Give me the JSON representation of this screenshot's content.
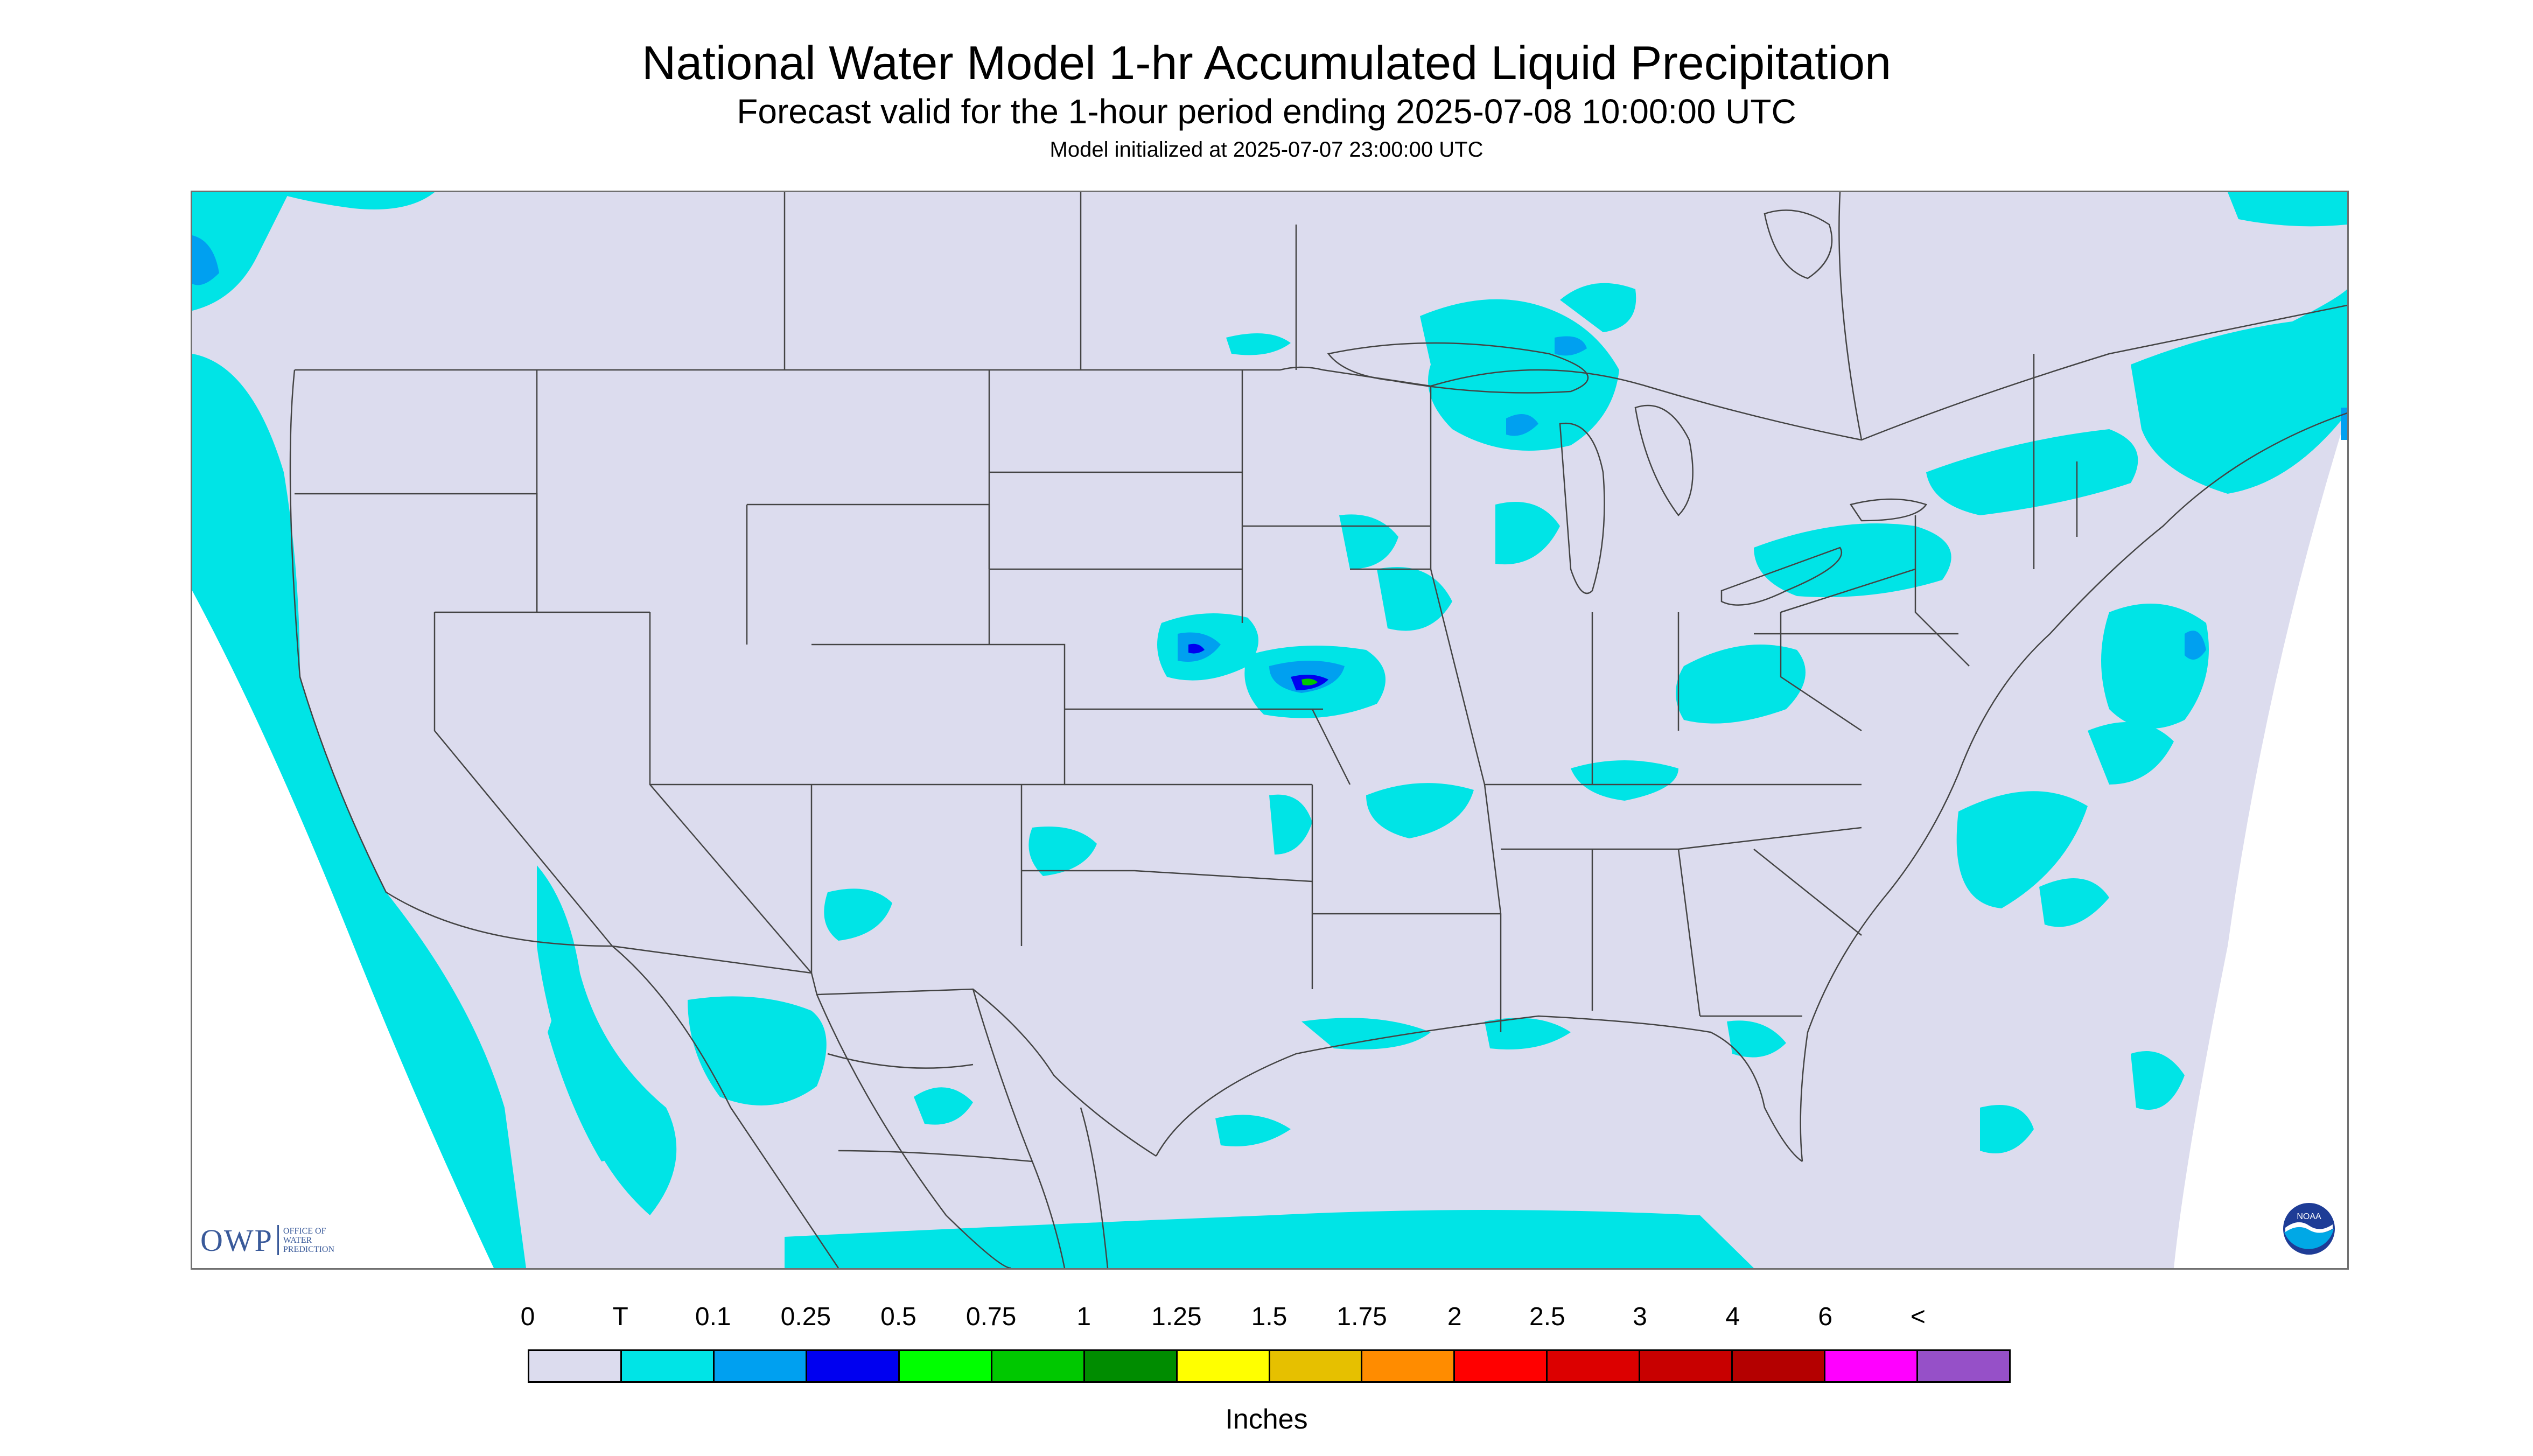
{
  "title": "National Water Model 1-hr Accumulated Liquid Precipitation",
  "subtitle": "Forecast valid for the 1-hour period ending 2025-07-08 10:00:00 UTC",
  "init_line": "Model initialized at 2025-07-07 23:00:00 UTC",
  "logo_owp": {
    "mark": "OWP",
    "words": [
      "Office of",
      "Water",
      "Prediction"
    ]
  },
  "logo_noaa": "NOAA",
  "legend": {
    "units_label": "Inches",
    "tick_labels": [
      "0",
      "T",
      "0.1",
      "0.25",
      "0.5",
      "0.75",
      "1",
      "1.25",
      "1.5",
      "1.75",
      "2",
      "2.5",
      "3",
      "4",
      "6",
      "<"
    ],
    "colors": [
      "#dcdcee",
      "#00e4e6",
      "#00a0f0",
      "#0000f0",
      "#00ff00",
      "#00c800",
      "#008c00",
      "#ffff00",
      "#e6c000",
      "#ff8c00",
      "#ff0000",
      "#dc0000",
      "#c80000",
      "#b40000",
      "#ff00ff",
      "#9650c8"
    ]
  },
  "map": {
    "background_color": "#dcdcee",
    "ocean_color": "#ffffff",
    "border_color": "#444444",
    "colors": {
      "trace": "#00e4e6",
      "light": "#00a0f0",
      "moderate": "#0000f0",
      "heavy": "#00c800"
    }
  }
}
